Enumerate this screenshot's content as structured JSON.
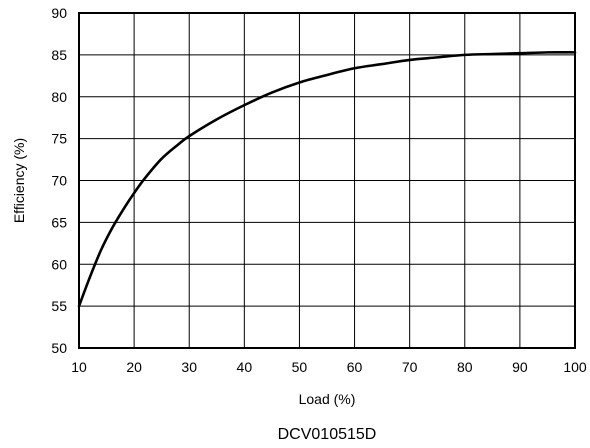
{
  "chart_data": {
    "type": "line",
    "xlabel": "Load (%)",
    "ylabel": "Efficiency (%)",
    "xlim": [
      10,
      100
    ],
    "ylim": [
      50,
      90
    ],
    "x_ticks": [
      10,
      20,
      30,
      40,
      50,
      60,
      70,
      80,
      90,
      100
    ],
    "y_ticks": [
      50,
      55,
      60,
      65,
      70,
      75,
      80,
      85,
      90
    ],
    "grid": true,
    "series": [
      {
        "x": [
          10,
          12,
          14,
          16,
          18,
          20,
          22,
          25,
          28,
          30,
          35,
          40,
          45,
          50,
          55,
          60,
          65,
          70,
          75,
          80,
          85,
          90,
          95,
          100
        ],
        "y": [
          55.0,
          58.5,
          61.7,
          64.3,
          66.5,
          68.5,
          70.3,
          72.6,
          74.3,
          75.3,
          77.3,
          79.0,
          80.5,
          81.7,
          82.6,
          83.4,
          83.9,
          84.4,
          84.7,
          85.0,
          85.1,
          85.2,
          85.3,
          85.3
        ],
        "color": "#000000"
      }
    ]
  },
  "caption": "DCV010515D"
}
